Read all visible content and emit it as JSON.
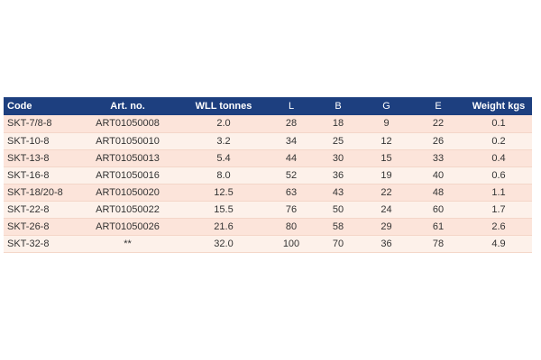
{
  "table": {
    "headers": {
      "code": "Code",
      "art_no": "Art. no.",
      "wll": "WLL tonnes",
      "l": "L",
      "b": "B",
      "g": "G",
      "e": "E",
      "weight": "Weight kgs"
    },
    "rows": [
      {
        "code": "SKT-7/8-8",
        "art_no": "ART01050008",
        "wll": "2.0",
        "l": "28",
        "b": "18",
        "g": "9",
        "e": "22",
        "weight": "0.1"
      },
      {
        "code": "SKT-10-8",
        "art_no": "ART01050010",
        "wll": "3.2",
        "l": "34",
        "b": "25",
        "g": "12",
        "e": "26",
        "weight": "0.2"
      },
      {
        "code": "SKT-13-8",
        "art_no": "ART01050013",
        "wll": "5.4",
        "l": "44",
        "b": "30",
        "g": "15",
        "e": "33",
        "weight": "0.4"
      },
      {
        "code": "SKT-16-8",
        "art_no": "ART01050016",
        "wll": "8.0",
        "l": "52",
        "b": "36",
        "g": "19",
        "e": "40",
        "weight": "0.6"
      },
      {
        "code": "SKT-18/20-8",
        "art_no": "ART01050020",
        "wll": "12.5",
        "l": "63",
        "b": "43",
        "g": "22",
        "e": "48",
        "weight": "1.1"
      },
      {
        "code": "SKT-22-8",
        "art_no": "ART01050022",
        "wll": "15.5",
        "l": "76",
        "b": "50",
        "g": "24",
        "e": "60",
        "weight": "1.7"
      },
      {
        "code": "SKT-26-8",
        "art_no": "ART01050026",
        "wll": "21.6",
        "l": "80",
        "b": "58",
        "g": "29",
        "e": "61",
        "weight": "2.6"
      },
      {
        "code": "SKT-32-8",
        "art_no": "**",
        "wll": "32.0",
        "l": "100",
        "b": "70",
        "g": "36",
        "e": "78",
        "weight": "4.9"
      }
    ]
  },
  "colors": {
    "header_bg": "#1d3f7f",
    "row_odd": "#fce4da",
    "row_even": "#fdf1ea"
  }
}
